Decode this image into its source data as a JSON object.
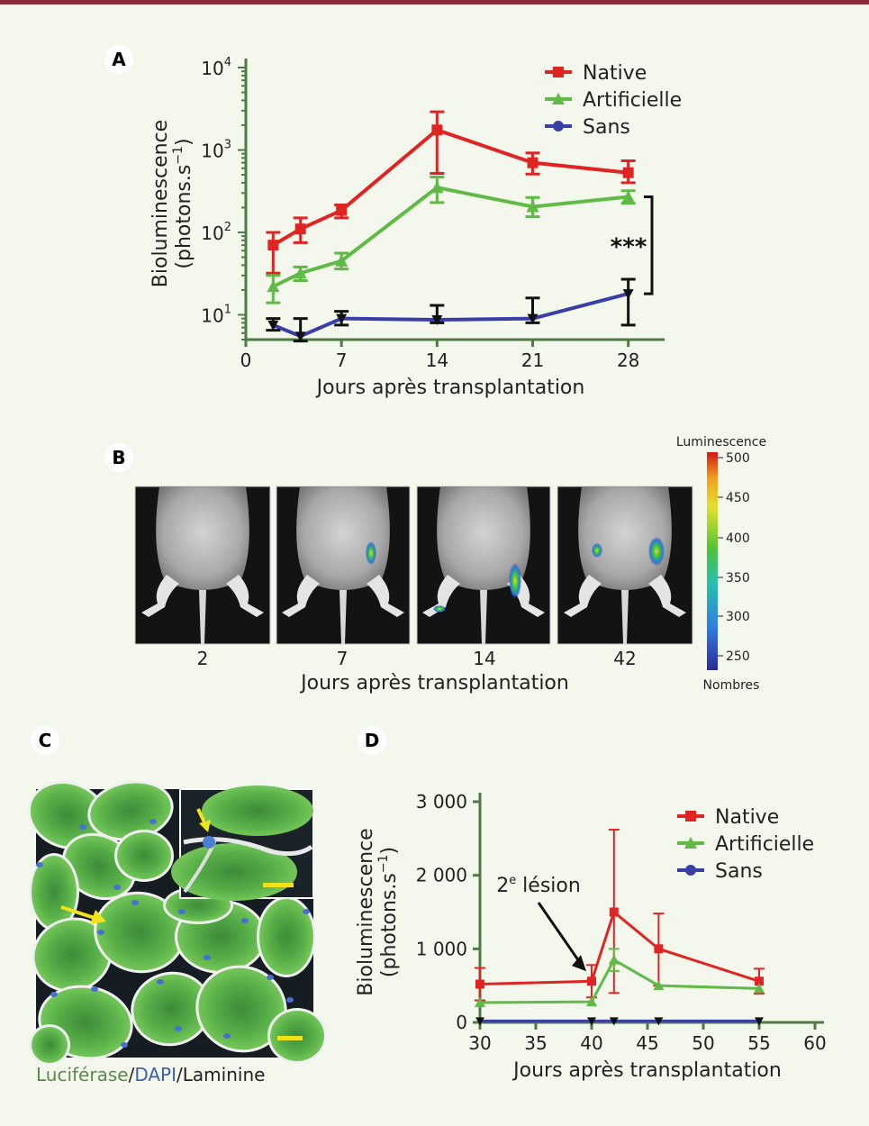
{
  "panels": {
    "a": "A",
    "b": "B",
    "c": "C",
    "d": "D"
  },
  "chart_data": [
    {
      "id": "A",
      "type": "line",
      "yscale": "log",
      "xlim": [
        0,
        30
      ],
      "ylim": [
        5,
        10000
      ],
      "xticks": [
        0,
        7,
        14,
        21,
        28
      ],
      "yticks": [
        {
          "base": "10",
          "exp": "1",
          "value": 10
        },
        {
          "base": "10",
          "exp": "2",
          "value": 100
        },
        {
          "base": "10",
          "exp": "3",
          "value": 1000
        },
        {
          "base": "10",
          "exp": "4",
          "value": 10000
        }
      ],
      "xlabel": "Jours après transplantation",
      "ylabel": [
        "Bioluminescence",
        "(photons.s",
        "−1",
        ")"
      ],
      "legend_position": "top-right",
      "significance": "***",
      "series": [
        {
          "name": "Native",
          "color": "#e02424",
          "marker": "square",
          "x": [
            2,
            4,
            7,
            14,
            21,
            28
          ],
          "y": [
            70,
            110,
            185,
            1750,
            700,
            530
          ],
          "err_low": [
            32,
            75,
            150,
            520,
            510,
            400
          ],
          "err_high": [
            100,
            150,
            215,
            2900,
            920,
            740
          ]
        },
        {
          "name": "Artificielle",
          "color": "#5fba46",
          "marker": "triangle",
          "x": [
            2,
            4,
            7,
            14,
            21,
            28
          ],
          "y": [
            22,
            32,
            45,
            350,
            205,
            270
          ],
          "err_low": [
            14,
            26,
            36,
            230,
            155,
            225
          ],
          "err_high": [
            30,
            38,
            56,
            470,
            265,
            320
          ]
        },
        {
          "name": "Sans",
          "color": "#3a3fa8",
          "marker": "circle",
          "x": [
            2,
            4,
            7,
            14,
            21,
            28
          ],
          "y": [
            7.5,
            5.5,
            9,
            8.7,
            9,
            18
          ],
          "err_low": [
            6.5,
            4.8,
            7.5,
            8,
            8,
            7.5
          ],
          "err_high": [
            9,
            9,
            11,
            13,
            16,
            27
          ]
        }
      ]
    },
    {
      "id": "D",
      "type": "line",
      "xlim": [
        30,
        60
      ],
      "ylim": [
        0,
        3000
      ],
      "xticks": [
        30,
        35,
        40,
        45,
        50,
        55,
        60
      ],
      "yticks": [
        {
          "label": "0",
          "value": 0
        },
        {
          "label": "1 000",
          "value": 1000
        },
        {
          "label": "2 000",
          "value": 2000
        },
        {
          "label": "3 000",
          "value": 3000
        }
      ],
      "xlabel": "Jours après transplantation",
      "ylabel": [
        "Bioluminescence",
        "(photons.s",
        "−1",
        ")"
      ],
      "legend_position": "top-right",
      "annotation": {
        "text_pre": "2",
        "text_sup": "e",
        "text_post": " lésion",
        "x": 40,
        "y": 550
      },
      "series": [
        {
          "name": "Native",
          "color": "#e02424",
          "marker": "square",
          "x": [
            30,
            40,
            42,
            46,
            55
          ],
          "y": [
            520,
            560,
            1500,
            1000,
            560
          ],
          "err_low": [
            300,
            340,
            400,
            500,
            390
          ],
          "err_high": [
            740,
            780,
            2620,
            1480,
            730
          ]
        },
        {
          "name": "Artificielle",
          "color": "#5fba46",
          "marker": "triangle",
          "x": [
            30,
            40,
            42,
            46,
            55
          ],
          "y": [
            270,
            280,
            850,
            500,
            460
          ],
          "err_low": [
            270,
            280,
            700,
            500,
            460
          ],
          "err_high": [
            270,
            280,
            1000,
            500,
            460
          ]
        },
        {
          "name": "Sans",
          "color": "#3a3fa8",
          "marker": "circle",
          "x": [
            30,
            40,
            42,
            46,
            55
          ],
          "y": [
            20,
            20,
            20,
            20,
            20
          ],
          "err_low": [
            20,
            20,
            20,
            20,
            20
          ],
          "err_high": [
            20,
            20,
            20,
            20,
            20
          ]
        }
      ]
    }
  ],
  "panel_b": {
    "days": [
      "2",
      "7",
      "14",
      "42"
    ],
    "xlabel": "Jours après transplantation",
    "colorbar": {
      "title": "Luminescence",
      "ticks": [
        "500",
        "450",
        "400",
        "350",
        "300",
        "250"
      ],
      "footer": "Nombres"
    }
  },
  "panel_c": {
    "stain_1": "Luciférase",
    "sep1": "/",
    "stain_2": "DAPI",
    "sep2": "/",
    "stain_3": "Laminine",
    "colors": {
      "stain_1": "#5c8a4a",
      "stain_2": "#3d5fb0",
      "stain_3": "#222222"
    }
  }
}
